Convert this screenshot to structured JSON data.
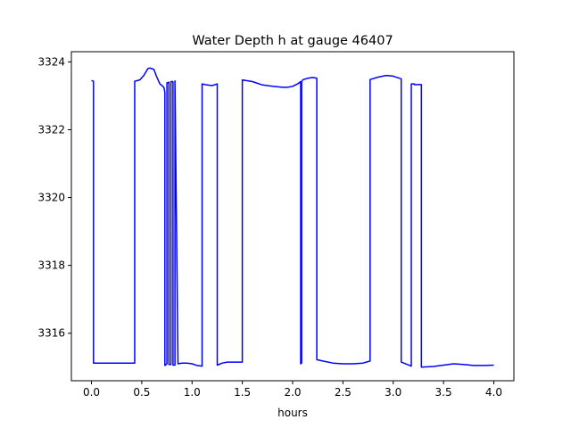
{
  "chart_data": {
    "type": "line",
    "title": "Water Depth h at gauge 46407",
    "xlabel": "hours",
    "ylabel": "",
    "xlim": [
      -0.2,
      4.2
    ],
    "ylim": [
      3314.6,
      3324.3
    ],
    "xticks": [
      0.0,
      0.5,
      1.0,
      1.5,
      2.0,
      2.5,
      3.0,
      3.5,
      4.0
    ],
    "xtick_labels": [
      "0.0",
      "0.5",
      "1.0",
      "1.5",
      "2.0",
      "2.5",
      "3.0",
      "3.5",
      "4.0"
    ],
    "yticks": [
      3316,
      3318,
      3320,
      3322,
      3324
    ],
    "ytick_labels": [
      "3316",
      "3318",
      "3320",
      "3322",
      "3324"
    ],
    "grid": false,
    "line_color": "#0000ff",
    "series": [
      {
        "x": [
          0.0,
          0.02,
          0.02,
          0.43,
          0.43,
          0.48,
          0.52,
          0.56,
          0.58,
          0.6,
          0.62,
          0.65,
          0.68,
          0.7,
          0.72,
          0.73,
          0.73,
          0.75,
          0.75,
          0.77,
          0.77,
          0.79,
          0.79,
          0.81,
          0.81,
          0.83,
          0.83,
          0.86,
          0.9,
          0.95,
          1.0,
          1.05,
          1.1,
          1.1,
          1.15,
          1.2,
          1.25,
          1.25,
          1.3,
          1.35,
          1.4,
          1.45,
          1.5,
          1.5,
          1.6,
          1.7,
          1.8,
          1.9,
          1.95,
          2.0,
          2.05,
          2.08,
          2.08,
          2.09,
          2.09,
          2.1,
          2.15,
          2.2,
          2.24,
          2.24,
          2.3,
          2.4,
          2.5,
          2.6,
          2.7,
          2.77,
          2.77,
          2.85,
          2.93,
          3.0,
          3.08,
          3.08,
          3.18,
          3.18,
          3.21,
          3.21,
          3.28,
          3.28,
          3.4,
          3.5,
          3.6,
          3.7,
          3.8,
          3.9,
          4.0
        ],
        "y": [
          3323.45,
          3323.43,
          3315.12,
          3315.12,
          3323.43,
          3323.47,
          3323.6,
          3323.8,
          3323.82,
          3323.8,
          3323.78,
          3323.55,
          3323.35,
          3323.3,
          3323.25,
          3323.1,
          3315.05,
          3315.1,
          3323.38,
          3323.4,
          3315.08,
          3315.08,
          3323.42,
          3323.42,
          3315.06,
          3315.06,
          3323.44,
          3315.1,
          3315.12,
          3315.12,
          3315.1,
          3315.05,
          3315.03,
          3323.35,
          3323.32,
          3323.3,
          3323.35,
          3315.06,
          3315.12,
          3315.15,
          3315.15,
          3315.15,
          3315.15,
          3323.47,
          3323.42,
          3323.32,
          3323.28,
          3323.25,
          3323.25,
          3323.28,
          3323.35,
          3323.42,
          3315.1,
          3315.12,
          3323.42,
          3323.47,
          3323.52,
          3323.54,
          3323.52,
          3315.22,
          3315.18,
          3315.12,
          3315.1,
          3315.1,
          3315.12,
          3315.18,
          3323.48,
          3323.55,
          3323.6,
          3323.58,
          3323.5,
          3315.15,
          3315.03,
          3323.35,
          3323.35,
          3323.33,
          3323.33,
          3315.0,
          3315.02,
          3315.06,
          3315.1,
          3315.08,
          3315.05,
          3315.05,
          3315.06
        ]
      }
    ]
  }
}
